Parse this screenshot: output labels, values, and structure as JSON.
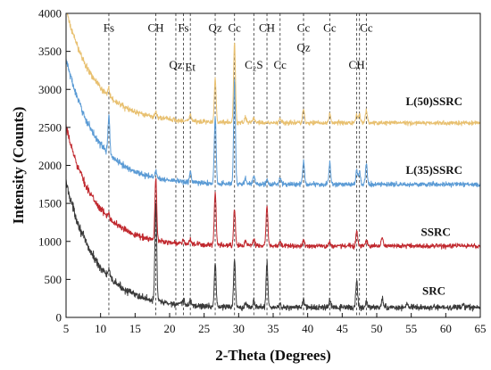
{
  "chart_data": {
    "type": "line",
    "xlabel": "2-Theta (Degrees)",
    "ylabel": "Intensity (Counts)",
    "xlim": [
      5,
      65
    ],
    "ylim": [
      0,
      4000
    ],
    "xticks": [
      5,
      10,
      15,
      20,
      25,
      30,
      35,
      40,
      45,
      50,
      55,
      60,
      65
    ],
    "yticks": [
      0,
      500,
      1000,
      1500,
      2000,
      2500,
      3000,
      3500,
      4000
    ],
    "grid": false,
    "reference_lines": [
      {
        "x": 11.2,
        "label": "Fs",
        "label_y": 3820
      },
      {
        "x": 18.0,
        "label": "CH",
        "label_y": 3820
      },
      {
        "x": 20.9,
        "label": "Qz",
        "label_y": 3330
      },
      {
        "x": 22.0,
        "label": "Fs",
        "label_y": 3820
      },
      {
        "x": 23.0,
        "label": "Et",
        "label_y": 3300
      },
      {
        "x": 26.6,
        "label": "Qz",
        "label_y": 3820
      },
      {
        "x": 29.4,
        "label": "Cc",
        "label_y": 3820
      },
      {
        "x": 32.2,
        "label": "C₂S",
        "label_y": 3330
      },
      {
        "x": 34.1,
        "label": "CH",
        "label_y": 3820
      },
      {
        "x": 36.0,
        "label": "Cc",
        "label_y": 3330
      },
      {
        "x": 39.4,
        "label": "Cc",
        "label_y": 3820
      },
      {
        "x": 39.4,
        "label": "Qz",
        "label_y": 3560
      },
      {
        "x": 43.2,
        "label": "Cc",
        "label_y": 3820
      },
      {
        "x": 47.1,
        "label": "CH",
        "label_y": 3330
      },
      {
        "x": 47.5,
        "label": "",
        "label_y": 0
      },
      {
        "x": 48.5,
        "label": "Cc",
        "label_y": 3820
      }
    ],
    "series": [
      {
        "name": "SRC",
        "color": "#3a3a3a",
        "baseline": 130,
        "amplitude": 1650,
        "decay_tau": 4.4,
        "noise": 28,
        "label_x": 56.6,
        "label_y": 360,
        "peaks": [
          {
            "x": 11.2,
            "h": 90
          },
          {
            "x": 18.0,
            "h": 1300
          },
          {
            "x": 22.0,
            "h": 60
          },
          {
            "x": 23.0,
            "h": 70
          },
          {
            "x": 26.6,
            "h": 570
          },
          {
            "x": 29.4,
            "h": 640
          },
          {
            "x": 31.0,
            "h": 70
          },
          {
            "x": 32.2,
            "h": 90
          },
          {
            "x": 34.1,
            "h": 590
          },
          {
            "x": 36.0,
            "h": 60
          },
          {
            "x": 39.4,
            "h": 110
          },
          {
            "x": 43.2,
            "h": 90
          },
          {
            "x": 47.1,
            "h": 350
          },
          {
            "x": 48.5,
            "h": 90
          },
          {
            "x": 50.8,
            "h": 120
          },
          {
            "x": 54.4,
            "h": 60
          },
          {
            "x": 62.5,
            "h": 40
          }
        ]
      },
      {
        "name": "SSRC",
        "color": "#c0272d",
        "baseline": 940,
        "amplitude": 1560,
        "decay_tau": 4.3,
        "noise": 24,
        "label_x": 56.4,
        "label_y": 1130,
        "peaks": [
          {
            "x": 11.2,
            "h": 80
          },
          {
            "x": 18.0,
            "h": 810
          },
          {
            "x": 22.0,
            "h": 50
          },
          {
            "x": 23.0,
            "h": 60
          },
          {
            "x": 26.6,
            "h": 700
          },
          {
            "x": 29.4,
            "h": 480
          },
          {
            "x": 31.0,
            "h": 60
          },
          {
            "x": 32.2,
            "h": 90
          },
          {
            "x": 34.1,
            "h": 520
          },
          {
            "x": 36.0,
            "h": 40
          },
          {
            "x": 39.4,
            "h": 70
          },
          {
            "x": 43.2,
            "h": 50
          },
          {
            "x": 47.1,
            "h": 200
          },
          {
            "x": 48.5,
            "h": 70
          },
          {
            "x": 50.8,
            "h": 100
          }
        ]
      },
      {
        "name": "L(35)SSRC",
        "color": "#5b9bd5",
        "baseline": 1750,
        "amplitude": 1650,
        "decay_tau": 4.4,
        "noise": 24,
        "label_x": 54.2,
        "label_y": 1950,
        "peaks": [
          {
            "x": 11.2,
            "h": 500
          },
          {
            "x": 18.0,
            "h": 90
          },
          {
            "x": 23.0,
            "h": 130
          },
          {
            "x": 26.6,
            "h": 880
          },
          {
            "x": 29.4,
            "h": 1360
          },
          {
            "x": 31.0,
            "h": 80
          },
          {
            "x": 32.2,
            "h": 110
          },
          {
            "x": 34.1,
            "h": 60
          },
          {
            "x": 36.0,
            "h": 90
          },
          {
            "x": 39.4,
            "h": 300
          },
          {
            "x": 43.2,
            "h": 280
          },
          {
            "x": 47.1,
            "h": 180
          },
          {
            "x": 47.5,
            "h": 160
          },
          {
            "x": 48.5,
            "h": 270
          }
        ]
      },
      {
        "name": "L(50)SSRC",
        "color": "#e8c070",
        "baseline": 2560,
        "amplitude": 1480,
        "decay_tau": 4.3,
        "noise": 22,
        "label_x": 54.2,
        "label_y": 2850,
        "peaks": [
          {
            "x": 11.2,
            "h": 110
          },
          {
            "x": 18.0,
            "h": 80
          },
          {
            "x": 23.0,
            "h": 100
          },
          {
            "x": 26.6,
            "h": 580
          },
          {
            "x": 29.4,
            "h": 1060
          },
          {
            "x": 31.0,
            "h": 60
          },
          {
            "x": 32.2,
            "h": 70
          },
          {
            "x": 36.0,
            "h": 60
          },
          {
            "x": 39.4,
            "h": 180
          },
          {
            "x": 43.2,
            "h": 120
          },
          {
            "x": 47.1,
            "h": 110
          },
          {
            "x": 47.5,
            "h": 110
          },
          {
            "x": 48.5,
            "h": 160
          }
        ]
      }
    ]
  }
}
